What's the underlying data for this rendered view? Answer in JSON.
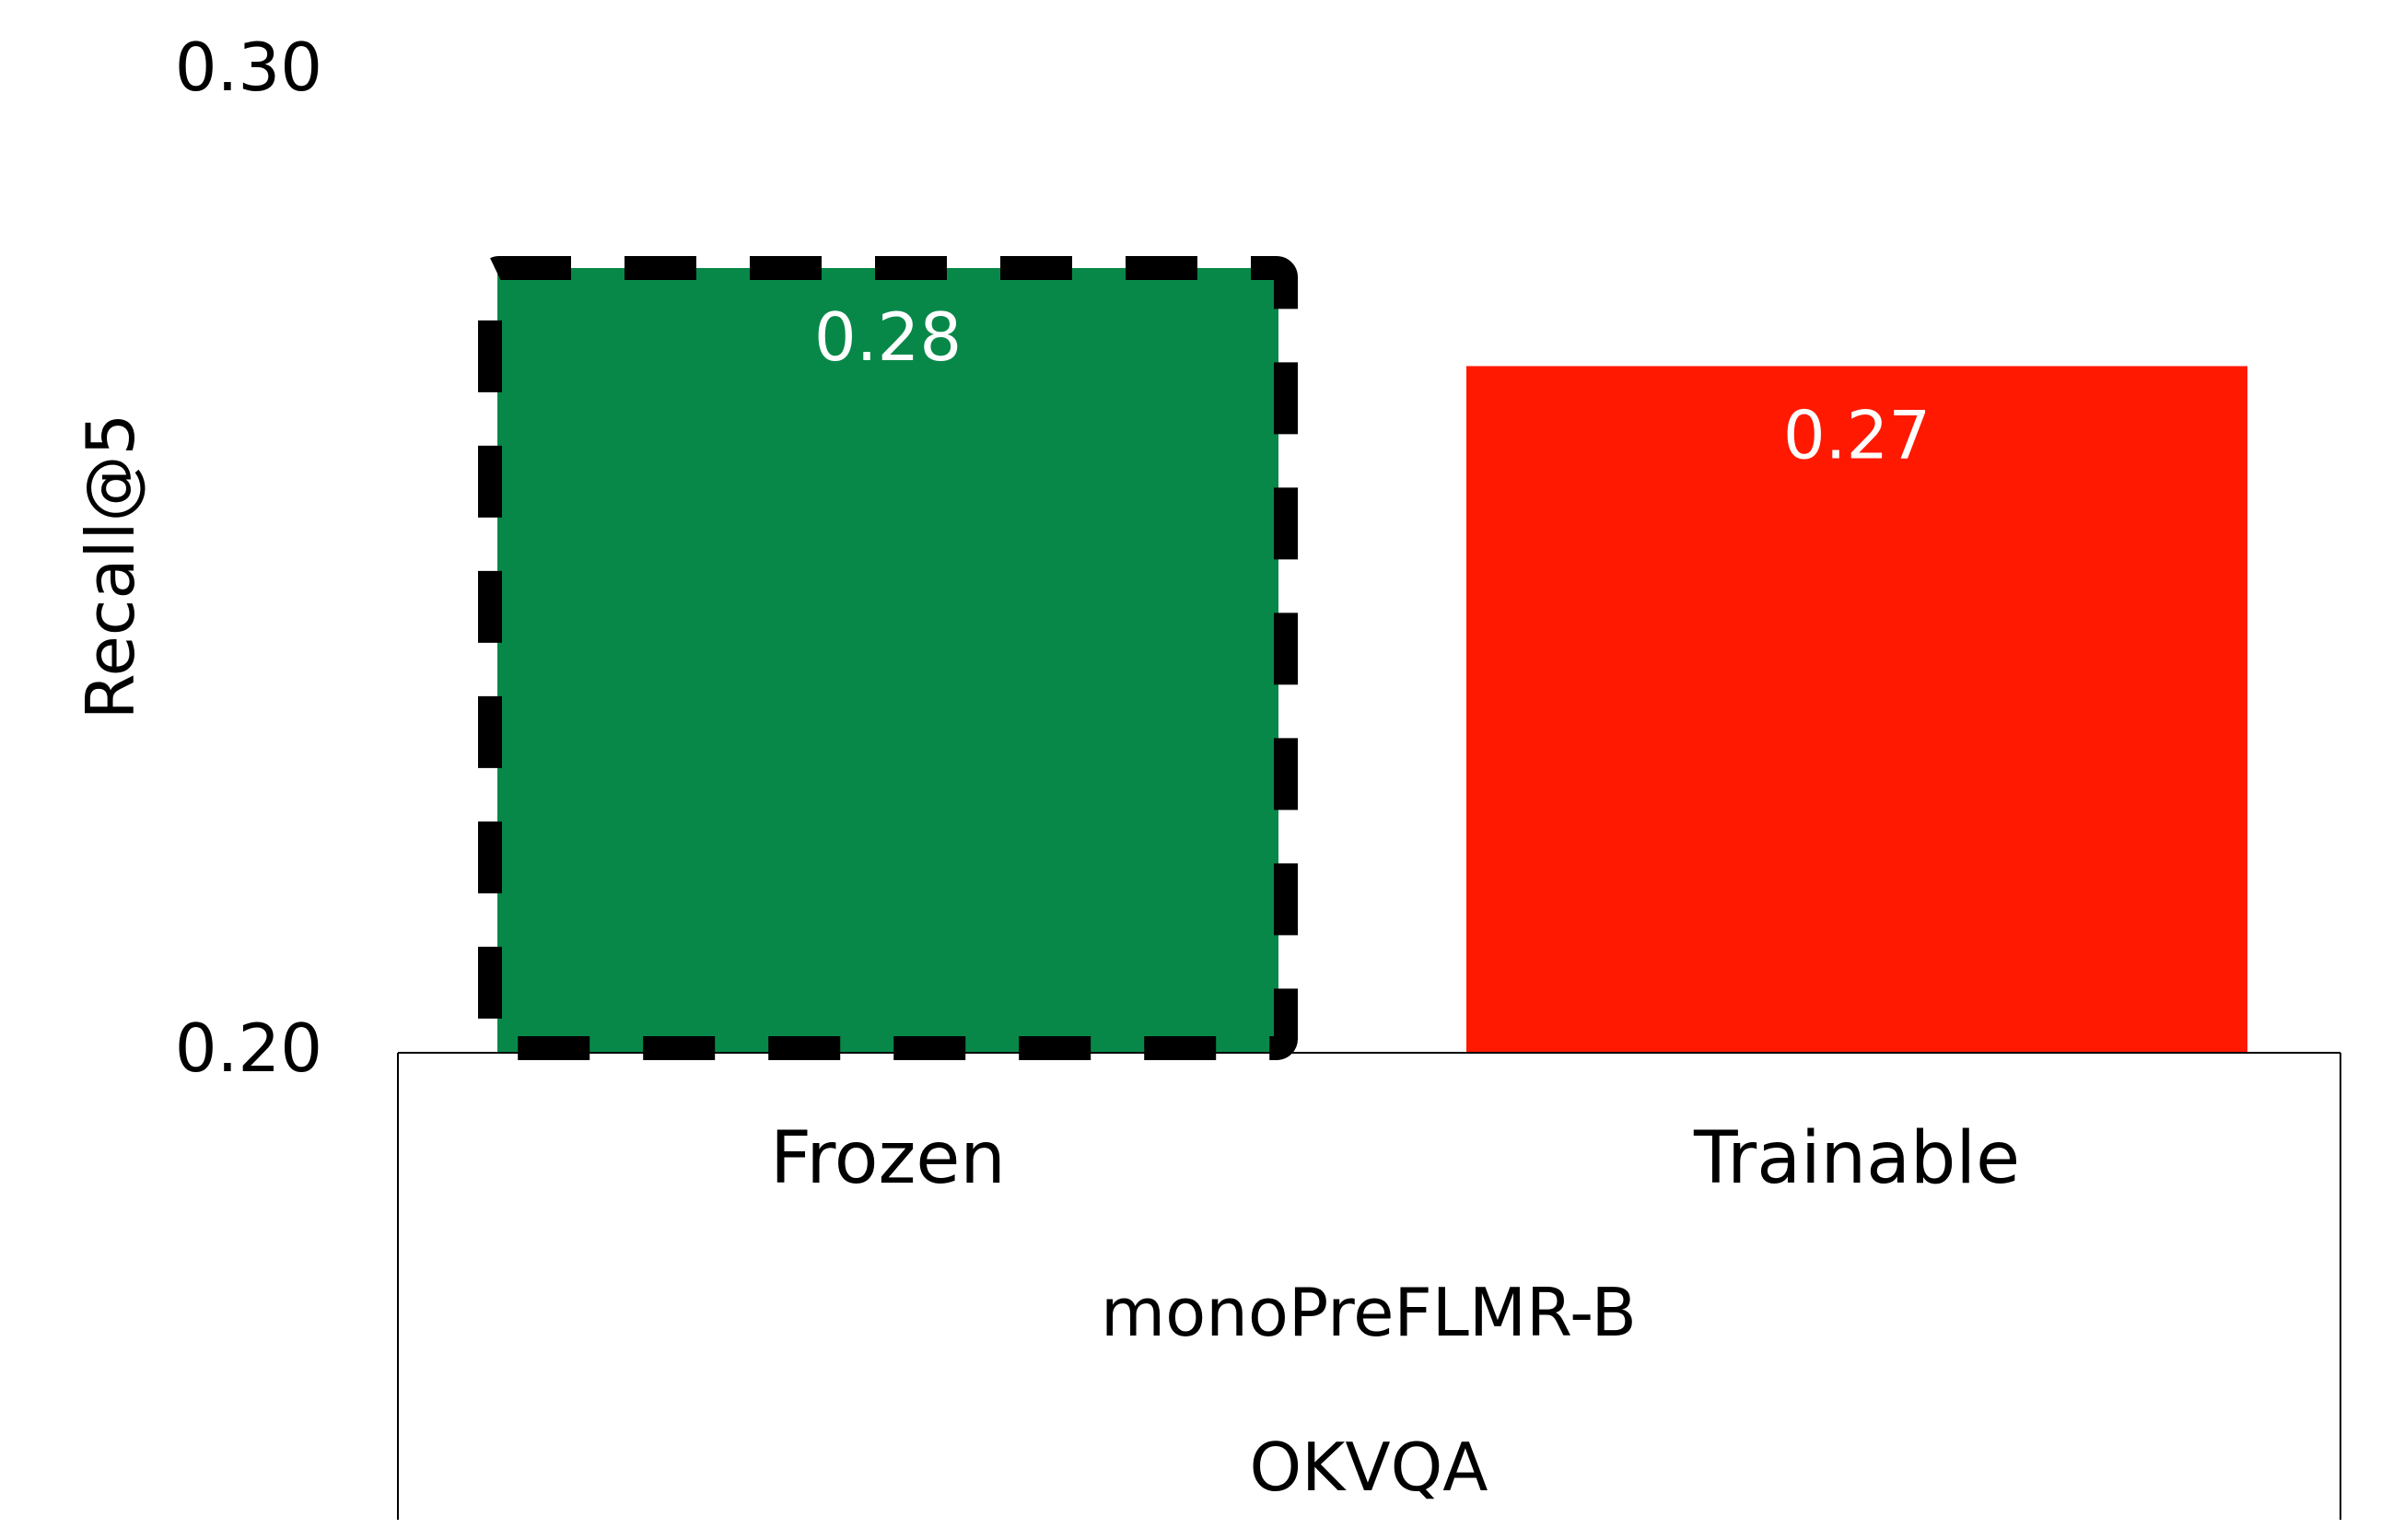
{
  "chart_data": {
    "type": "bar",
    "categories": [
      "Frozen",
      "Trainable"
    ],
    "values": [
      0.28,
      0.27
    ],
    "value_labels": [
      "0.28",
      "0.27"
    ],
    "bar_colors": [
      "#078849",
      "#ff1900"
    ],
    "highlight": [
      "dashed-border",
      "none"
    ],
    "ylabel": "Recall@5",
    "ylim": [
      0.2,
      0.3
    ],
    "yticks": [
      "0.20",
      "0.30"
    ],
    "group_labels": [
      "monoPreFLMR-B",
      "OKVQA"
    ],
    "grid": false,
    "legend": "none"
  }
}
